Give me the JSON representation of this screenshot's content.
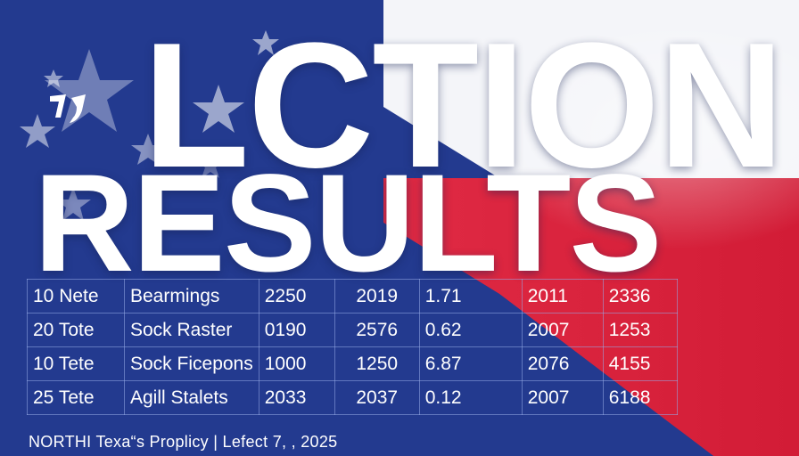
{
  "headline": {
    "line1": "LCTION",
    "line2": "RESULTS"
  },
  "colors": {
    "blue": "#233a8f",
    "red": "#d8203a",
    "white": "#ffffff"
  },
  "table": {
    "rows": [
      [
        "10 Nete",
        "Bearmings",
        "2250",
        "2019",
        "1.71",
        "2011",
        "2336"
      ],
      [
        "20 Tote",
        "Sock Raster",
        "0190",
        "2576",
        "0.62",
        "2007",
        "1253"
      ],
      [
        "10 Tete",
        "Sock Ficepons",
        "1000",
        "1250",
        "6.87",
        "2076",
        "4155"
      ],
      [
        "25 Tete",
        "Agill Stalets",
        "2033",
        "2037",
        "0.12",
        "2007",
        "6188"
      ]
    ]
  },
  "footer": "NORTHI Texa“s Proplicy | Lefect 7, , 2025"
}
